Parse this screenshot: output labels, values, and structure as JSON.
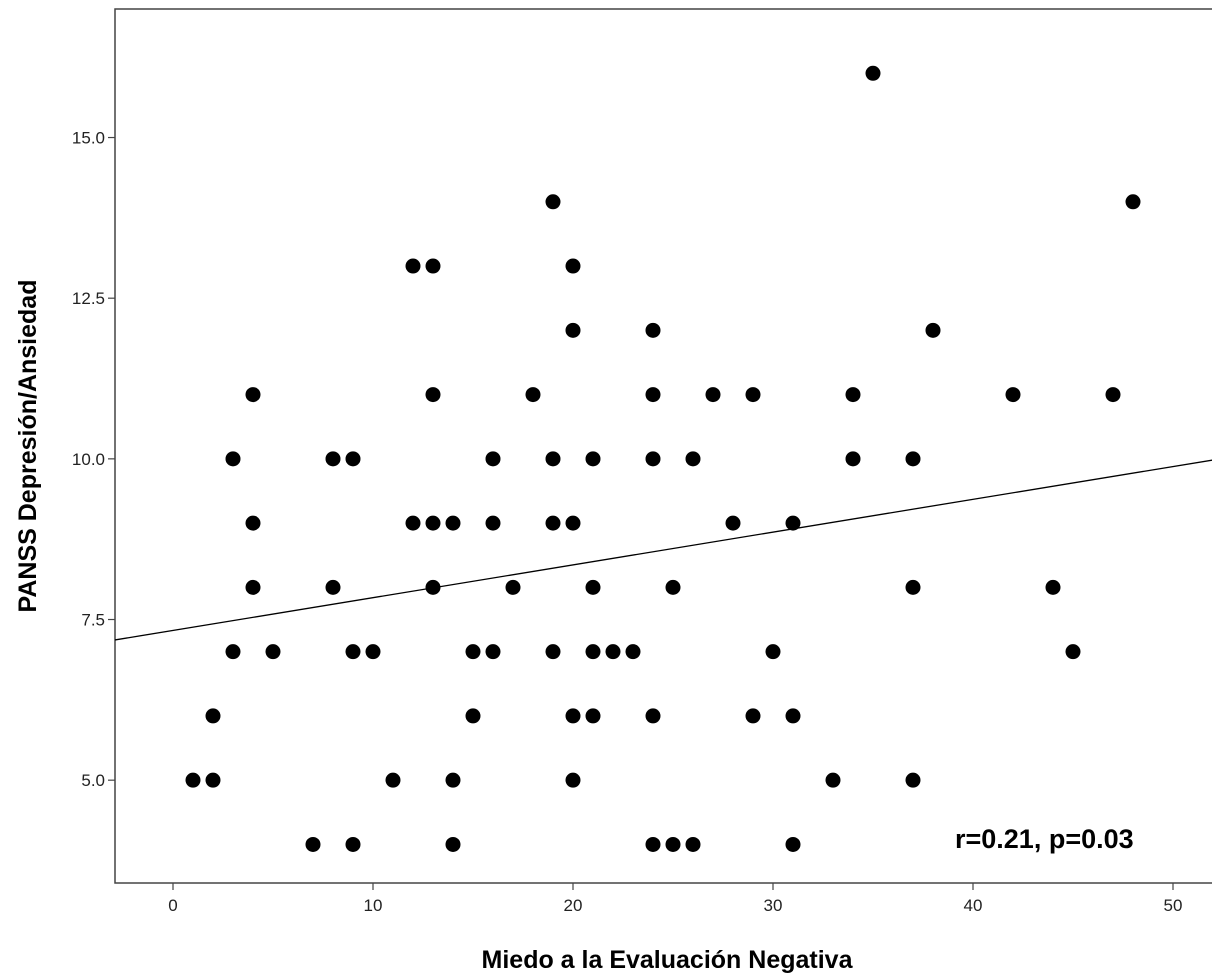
{
  "chart_data": {
    "type": "scatter",
    "xlabel": "Miedo a la Evaluación Negativa",
    "ylabel": "PANSS Depresión/Ansiedad",
    "xlim": [
      -2.9,
      52.6
    ],
    "ylim": [
      3.4,
      17.0
    ],
    "x_ticks": [
      0,
      10,
      20,
      30,
      40,
      50
    ],
    "x_tick_labels": [
      "0",
      "10",
      "20",
      "30",
      "40",
      "50"
    ],
    "y_ticks": [
      5.0,
      7.5,
      10.0,
      12.5,
      15.0
    ],
    "y_tick_labels": [
      "5.0",
      "7.5",
      "10.0",
      "12.5",
      "15.0"
    ],
    "annotation": "r=0.21, p=0.03",
    "fit_line": {
      "intercept": 7.33,
      "slope": 0.051
    },
    "points": [
      {
        "x": 1,
        "y": 5
      },
      {
        "x": 2,
        "y": 5
      },
      {
        "x": 2,
        "y": 6
      },
      {
        "x": 3,
        "y": 7
      },
      {
        "x": 3,
        "y": 10
      },
      {
        "x": 4,
        "y": 8
      },
      {
        "x": 4,
        "y": 9
      },
      {
        "x": 4,
        "y": 11
      },
      {
        "x": 5,
        "y": 7
      },
      {
        "x": 7,
        "y": 4
      },
      {
        "x": 8,
        "y": 8
      },
      {
        "x": 8,
        "y": 10
      },
      {
        "x": 9,
        "y": 4
      },
      {
        "x": 9,
        "y": 7
      },
      {
        "x": 9,
        "y": 10
      },
      {
        "x": 10,
        "y": 7
      },
      {
        "x": 11,
        "y": 5
      },
      {
        "x": 12,
        "y": 9
      },
      {
        "x": 12,
        "y": 13
      },
      {
        "x": 13,
        "y": 8
      },
      {
        "x": 13,
        "y": 9
      },
      {
        "x": 13,
        "y": 11
      },
      {
        "x": 13,
        "y": 13
      },
      {
        "x": 14,
        "y": 4
      },
      {
        "x": 14,
        "y": 5
      },
      {
        "x": 14,
        "y": 9
      },
      {
        "x": 15,
        "y": 6
      },
      {
        "x": 15,
        "y": 7
      },
      {
        "x": 16,
        "y": 7
      },
      {
        "x": 16,
        "y": 9
      },
      {
        "x": 16,
        "y": 10
      },
      {
        "x": 17,
        "y": 8
      },
      {
        "x": 18,
        "y": 11
      },
      {
        "x": 19,
        "y": 7
      },
      {
        "x": 19,
        "y": 9
      },
      {
        "x": 19,
        "y": 10
      },
      {
        "x": 19,
        "y": 14
      },
      {
        "x": 20,
        "y": 5
      },
      {
        "x": 20,
        "y": 6
      },
      {
        "x": 20,
        "y": 9
      },
      {
        "x": 20,
        "y": 12
      },
      {
        "x": 20,
        "y": 13
      },
      {
        "x": 21,
        "y": 6
      },
      {
        "x": 21,
        "y": 7
      },
      {
        "x": 21,
        "y": 8
      },
      {
        "x": 21,
        "y": 10
      },
      {
        "x": 22,
        "y": 7
      },
      {
        "x": 23,
        "y": 7
      },
      {
        "x": 24,
        "y": 4
      },
      {
        "x": 24,
        "y": 6
      },
      {
        "x": 24,
        "y": 10
      },
      {
        "x": 24,
        "y": 11
      },
      {
        "x": 24,
        "y": 12
      },
      {
        "x": 25,
        "y": 4
      },
      {
        "x": 25,
        "y": 8
      },
      {
        "x": 26,
        "y": 4
      },
      {
        "x": 26,
        "y": 10
      },
      {
        "x": 27,
        "y": 11
      },
      {
        "x": 28,
        "y": 9
      },
      {
        "x": 29,
        "y": 6
      },
      {
        "x": 29,
        "y": 11
      },
      {
        "x": 30,
        "y": 7
      },
      {
        "x": 31,
        "y": 4
      },
      {
        "x": 31,
        "y": 6
      },
      {
        "x": 31,
        "y": 9
      },
      {
        "x": 33,
        "y": 5
      },
      {
        "x": 34,
        "y": 10
      },
      {
        "x": 34,
        "y": 11
      },
      {
        "x": 35,
        "y": 16
      },
      {
        "x": 37,
        "y": 5
      },
      {
        "x": 37,
        "y": 8
      },
      {
        "x": 37,
        "y": 10
      },
      {
        "x": 38,
        "y": 12
      },
      {
        "x": 42,
        "y": 11
      },
      {
        "x": 44,
        "y": 8
      },
      {
        "x": 45,
        "y": 7
      },
      {
        "x": 47,
        "y": 11
      },
      {
        "x": 48,
        "y": 14
      }
    ]
  }
}
